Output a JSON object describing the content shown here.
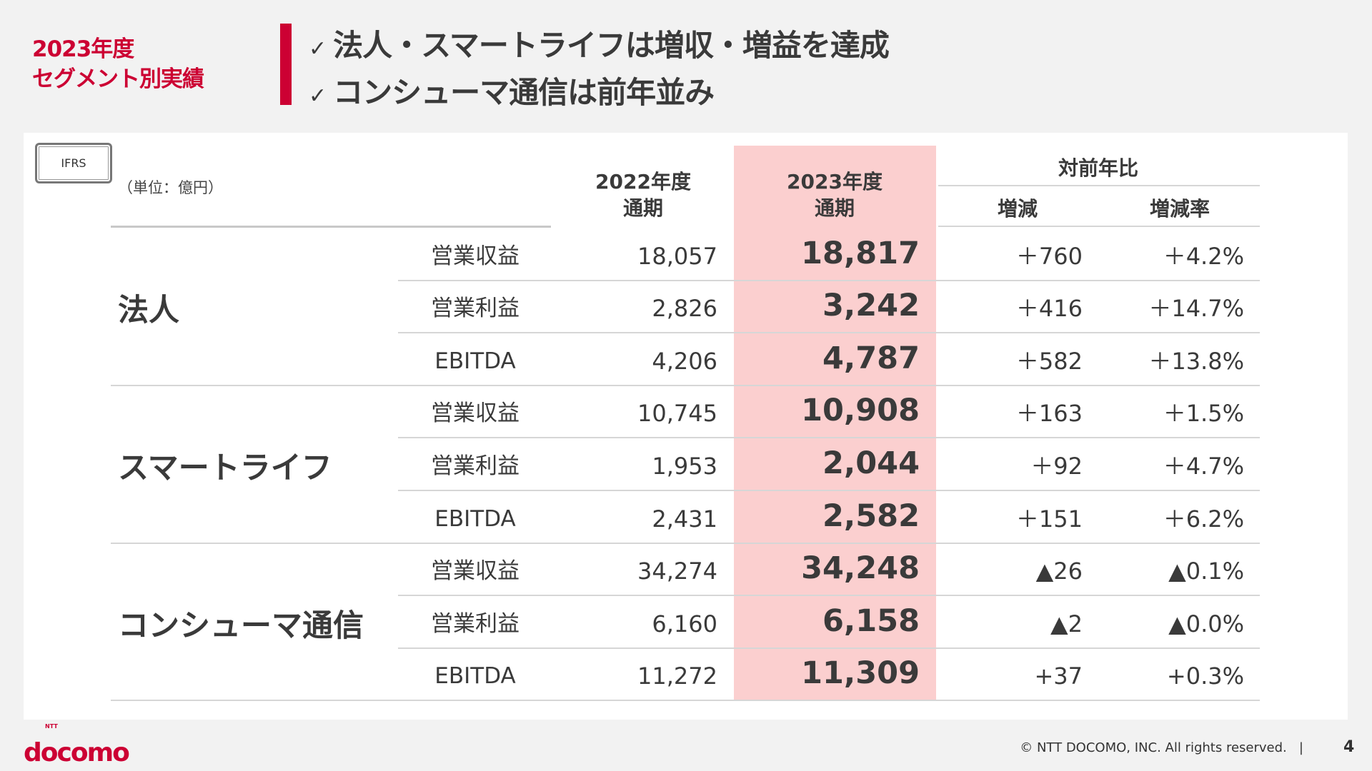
{
  "slide_title": [
    "2023年度",
    "セグメント別実績"
  ],
  "headlines": [
    "法人・スマートライフは増収・増益を達成",
    "コンシューマ通信は前年並み"
  ],
  "check_icon": "✓",
  "badge": "IFRS",
  "unit": "（単位：億円）",
  "header": {
    "fy2022": [
      "2022年度",
      "通期"
    ],
    "fy2023": [
      "2023年度",
      "通期"
    ],
    "yoy": "対前年比",
    "diff": "増減",
    "rate": "増減率"
  },
  "groups": [
    {
      "name": "法人",
      "rows": [
        {
          "metric": "営業収益",
          "fy2022": "18,057",
          "fy2023": "18,817",
          "diff": "＋760",
          "rate": "＋4.2%"
        },
        {
          "metric": "営業利益",
          "fy2022": "2,826",
          "fy2023": "3,242",
          "diff": "＋416",
          "rate": "＋14.7%"
        },
        {
          "metric": "EBITDA",
          "fy2022": "4,206",
          "fy2023": "4,787",
          "diff": "＋582",
          "rate": "＋13.8%"
        }
      ]
    },
    {
      "name": "スマートライフ",
      "rows": [
        {
          "metric": "営業収益",
          "fy2022": "10,745",
          "fy2023": "10,908",
          "diff": "＋163",
          "rate": "＋1.5%"
        },
        {
          "metric": "営業利益",
          "fy2022": "1,953",
          "fy2023": "2,044",
          "diff": "＋92",
          "rate": "＋4.7%"
        },
        {
          "metric": "EBITDA",
          "fy2022": "2,431",
          "fy2023": "2,582",
          "diff": "＋151",
          "rate": "＋6.2%"
        }
      ]
    },
    {
      "name": "コンシューマ通信",
      "rows": [
        {
          "metric": "営業収益",
          "fy2022": "34,274",
          "fy2023": "34,248",
          "diff": "▲26",
          "rate": "▲0.1%"
        },
        {
          "metric": "営業利益",
          "fy2022": "6,160",
          "fy2023": "6,158",
          "diff": "▲2",
          "rate": "▲0.0%"
        },
        {
          "metric": "EBITDA",
          "fy2022": "11,272",
          "fy2023": "11,309",
          "diff": "+37",
          "rate": "+0.3%"
        }
      ]
    }
  ],
  "footer": {
    "copyright": "© NTT DOCOMO, INC.   All rights reserved.",
    "separator": "|",
    "page": "4",
    "logo": "NTT docomo"
  },
  "colors": {
    "brand": "#cc0033",
    "highlight": "#fbcfcf",
    "background": "#f2f2f2"
  }
}
